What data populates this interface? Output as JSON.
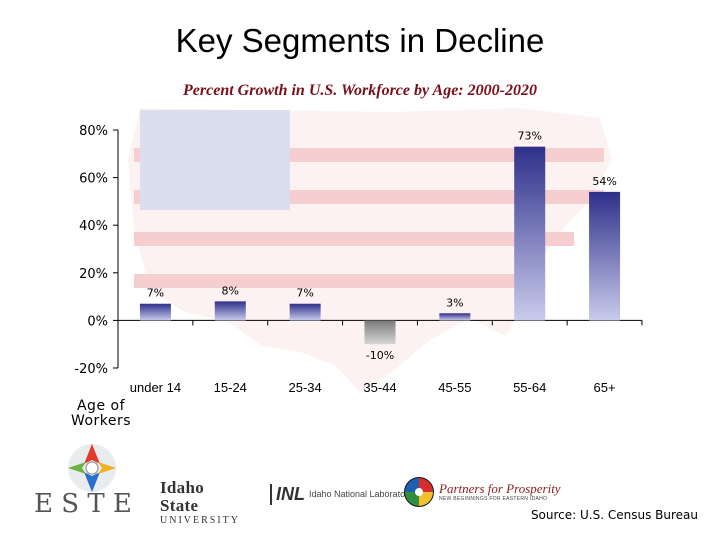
{
  "slide": {
    "title": "Key Segments in Decline"
  },
  "chart_data": {
    "type": "bar",
    "subtitle": "Percent Growth in U.S. Workforce by Age: 2000-2020",
    "xlabel": "Age of Workers",
    "ylabel": "",
    "categories": [
      "under 14",
      "15-24",
      "25-34",
      "35-44",
      "45-55",
      "55-64",
      "65+"
    ],
    "values": [
      7,
      8,
      7,
      -10,
      3,
      73,
      54
    ],
    "data_labels": [
      "7%",
      "8%",
      "7%",
      "-10%",
      "3%",
      "73%",
      "54%"
    ],
    "ylim": [
      -20,
      80
    ],
    "yticks": [
      -20,
      0,
      20,
      40,
      60,
      80
    ],
    "ytick_labels": [
      "-20%",
      "0%",
      "20%",
      "40%",
      "60%",
      "80%"
    ],
    "grid": false,
    "colors": {
      "positive": "#2e2f8a",
      "positive_light": "#c9cbec",
      "negative": "#7a7a7a",
      "negative_light": "#d6d6d6"
    }
  },
  "logos": {
    "estec": "E S T E C",
    "isu_line1": "Idaho State",
    "isu_line2": "UNIVERSITY",
    "inl_mark": "INL",
    "inl_text": "Idaho National Laboratory",
    "pfp_line1": "Partners for Prosperity",
    "pfp_line2": "NEW BEGINNINGS FOR EASTERN IDAHO"
  },
  "footer": {
    "source": "Source: U.S. Census Bureau"
  }
}
